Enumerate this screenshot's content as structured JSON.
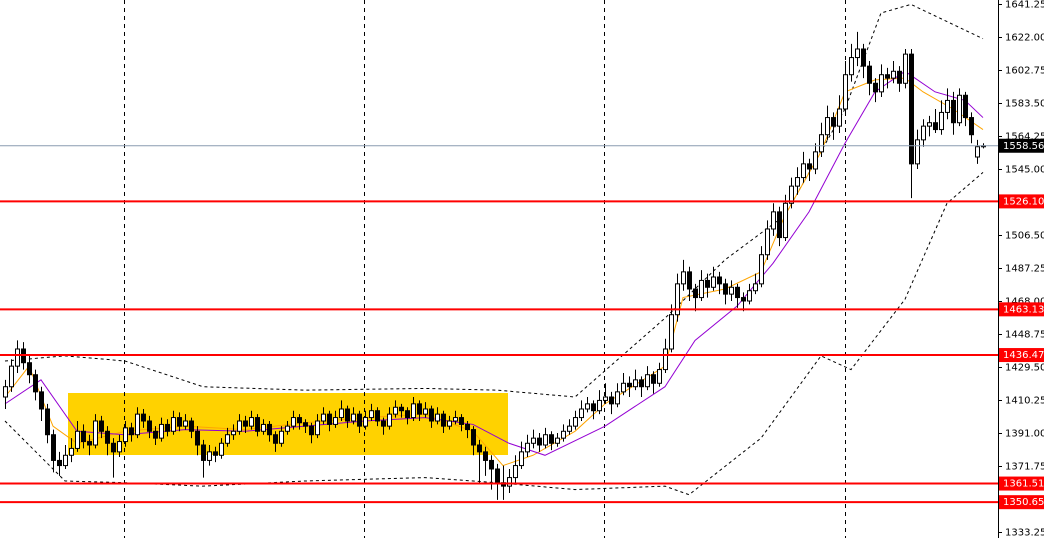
{
  "chart_data": {
    "type": "candlestick",
    "ylim": [
      1329.75,
      1643.58
    ],
    "yticks": [
      1641.25,
      {
        "value": 1622,
        "label": "1622.00"
      },
      1602.75,
      {
        "value": 1583.5,
        "label": "1583.50"
      },
      1564.25,
      {
        "value": 1545,
        "label": "1545.00"
      },
      {
        "value": 1506.5,
        "label": "1506.50"
      },
      1487.25,
      {
        "value": 1468,
        "label": "1468.00"
      },
      1448.75,
      {
        "value": 1429.5,
        "label": "1429.50"
      },
      1410.25,
      {
        "value": 1391,
        "label": "1391.00"
      },
      1371.75,
      1333.25
    ],
    "levels": [
      {
        "value": 1526.1,
        "label": "1526.10"
      },
      1463.13,
      1436.47,
      1361.51,
      1350.65
    ],
    "level_color": "#ff0000",
    "last_price": 1558.56,
    "up_color": "#ffffff",
    "down_color": "#000000",
    "candles": [
      [
        1412,
        1422,
        1405,
        1418
      ],
      [
        1418,
        1434,
        1415,
        1430
      ],
      [
        1430,
        1445,
        1426,
        1440
      ],
      [
        1440,
        1444,
        1428,
        1432
      ],
      [
        1432,
        1436,
        1420,
        1425
      ],
      [
        1425,
        1428,
        1410,
        1415
      ],
      [
        1415,
        1418,
        1398,
        1405
      ],
      [
        1405,
        1408,
        1385,
        1390
      ],
      [
        1390,
        1393,
        1368,
        1375
      ],
      [
        1375,
        1380,
        1366,
        1372
      ],
      [
        1372,
        1384,
        1370,
        1378
      ],
      [
        1378,
        1388,
        1374,
        1382
      ],
      [
        1382,
        1398,
        1380,
        1392
      ],
      [
        1392,
        1396,
        1382,
        1386
      ],
      [
        1386,
        1390,
        1378,
        1384
      ],
      [
        1384,
        1402,
        1382,
        1398
      ],
      [
        1398,
        1401,
        1388,
        1392
      ],
      [
        1392,
        1395,
        1378,
        1385
      ],
      [
        1385,
        1388,
        1365,
        1380
      ],
      [
        1380,
        1390,
        1377,
        1386
      ],
      [
        1386,
        1398,
        1383,
        1394
      ],
      [
        1394,
        1397,
        1386,
        1390
      ],
      [
        1390,
        1406,
        1388,
        1402
      ],
      [
        1402,
        1405,
        1394,
        1398
      ],
      [
        1398,
        1401,
        1388,
        1392
      ],
      [
        1392,
        1395,
        1384,
        1388
      ],
      [
        1388,
        1400,
        1386,
        1396
      ],
      [
        1396,
        1399,
        1389,
        1392
      ],
      [
        1392,
        1404,
        1390,
        1400
      ],
      [
        1400,
        1403,
        1392,
        1395
      ],
      [
        1395,
        1402,
        1393,
        1398
      ],
      [
        1398,
        1400,
        1388,
        1392
      ],
      [
        1392,
        1395,
        1378,
        1384
      ],
      [
        1384,
        1387,
        1365,
        1375
      ],
      [
        1375,
        1384,
        1372,
        1380
      ],
      [
        1380,
        1383,
        1374,
        1378
      ],
      [
        1378,
        1388,
        1376,
        1385
      ],
      [
        1385,
        1394,
        1383,
        1390
      ],
      [
        1390,
        1396,
        1387,
        1392
      ],
      [
        1392,
        1402,
        1390,
        1398
      ],
      [
        1398,
        1401,
        1391,
        1395
      ],
      [
        1395,
        1404,
        1393,
        1400
      ],
      [
        1400,
        1402,
        1389,
        1392
      ],
      [
        1392,
        1399,
        1390,
        1396
      ],
      [
        1396,
        1398,
        1386,
        1390
      ],
      [
        1390,
        1392,
        1380,
        1385
      ],
      [
        1385,
        1395,
        1383,
        1392
      ],
      [
        1392,
        1398,
        1390,
        1395
      ],
      [
        1395,
        1404,
        1393,
        1400
      ],
      [
        1400,
        1402,
        1393,
        1397
      ],
      [
        1397,
        1399,
        1391,
        1395
      ],
      [
        1395,
        1397,
        1385,
        1390
      ],
      [
        1390,
        1402,
        1388,
        1398
      ],
      [
        1398,
        1406,
        1396,
        1402
      ],
      [
        1402,
        1404,
        1392,
        1396
      ],
      [
        1396,
        1404,
        1394,
        1400
      ],
      [
        1400,
        1410,
        1398,
        1405
      ],
      [
        1405,
        1407,
        1394,
        1398
      ],
      [
        1398,
        1406,
        1396,
        1402
      ],
      [
        1402,
        1404,
        1391,
        1395
      ],
      [
        1395,
        1404,
        1393,
        1400
      ],
      [
        1400,
        1408,
        1398,
        1404
      ],
      [
        1404,
        1406,
        1395,
        1398
      ],
      [
        1398,
        1400,
        1390,
        1395
      ],
      [
        1395,
        1406,
        1393,
        1402
      ],
      [
        1402,
        1410,
        1400,
        1406
      ],
      [
        1406,
        1408,
        1400,
        1404
      ],
      [
        1404,
        1406,
        1396,
        1400
      ],
      [
        1400,
        1412,
        1398,
        1408
      ],
      [
        1408,
        1410,
        1398,
        1402
      ],
      [
        1402,
        1409,
        1400,
        1405
      ],
      [
        1405,
        1407,
        1394,
        1398
      ],
      [
        1398,
        1406,
        1396,
        1402
      ],
      [
        1402,
        1404,
        1391,
        1395
      ],
      [
        1395,
        1401,
        1393,
        1398
      ],
      [
        1398,
        1404,
        1396,
        1400
      ],
      [
        1400,
        1402,
        1392,
        1396
      ],
      [
        1396,
        1398,
        1388,
        1393
      ],
      [
        1393,
        1395,
        1378,
        1384
      ],
      [
        1384,
        1387,
        1362,
        1380
      ],
      [
        1380,
        1383,
        1366,
        1375
      ],
      [
        1375,
        1378,
        1358,
        1370
      ],
      [
        1370,
        1373,
        1352,
        1362
      ],
      [
        1362,
        1372,
        1352,
        1360
      ],
      [
        1360,
        1370,
        1356,
        1365
      ],
      [
        1365,
        1378,
        1362,
        1372
      ],
      [
        1372,
        1386,
        1370,
        1380
      ],
      [
        1380,
        1390,
        1377,
        1385
      ],
      [
        1385,
        1393,
        1382,
        1388
      ],
      [
        1388,
        1391,
        1380,
        1384
      ],
      [
        1384,
        1394,
        1382,
        1390
      ],
      [
        1390,
        1392,
        1381,
        1385
      ],
      [
        1385,
        1391,
        1383,
        1388
      ],
      [
        1388,
        1396,
        1386,
        1392
      ],
      [
        1392,
        1399,
        1390,
        1395
      ],
      [
        1395,
        1404,
        1393,
        1400
      ],
      [
        1400,
        1410,
        1398,
        1405
      ],
      [
        1405,
        1412,
        1403,
        1408
      ],
      [
        1408,
        1410,
        1399,
        1404
      ],
      [
        1404,
        1416,
        1402,
        1410
      ],
      [
        1410,
        1420,
        1408,
        1412
      ],
      [
        1412,
        1415,
        1402,
        1408
      ],
      [
        1408,
        1420,
        1406,
        1415
      ],
      [
        1415,
        1426,
        1413,
        1420
      ],
      [
        1420,
        1424,
        1412,
        1418
      ],
      [
        1418,
        1428,
        1416,
        1422
      ],
      [
        1422,
        1424,
        1412,
        1418
      ],
      [
        1418,
        1430,
        1416,
        1425
      ],
      [
        1425,
        1427,
        1414,
        1420
      ],
      [
        1420,
        1432,
        1418,
        1428
      ],
      [
        1428,
        1446,
        1426,
        1440
      ],
      [
        1440,
        1466,
        1438,
        1460
      ],
      [
        1460,
        1484,
        1456,
        1478
      ],
      [
        1478,
        1492,
        1474,
        1485
      ],
      [
        1485,
        1488,
        1468,
        1475
      ],
      [
        1475,
        1478,
        1462,
        1470
      ],
      [
        1470,
        1486,
        1468,
        1480
      ],
      [
        1480,
        1484,
        1470,
        1476
      ],
      [
        1476,
        1488,
        1474,
        1482
      ],
      [
        1482,
        1485,
        1472,
        1478
      ],
      [
        1478,
        1481,
        1466,
        1472
      ],
      [
        1472,
        1480,
        1468,
        1476
      ],
      [
        1476,
        1478,
        1464,
        1470
      ],
      [
        1470,
        1473,
        1462,
        1468
      ],
      [
        1468,
        1478,
        1466,
        1474
      ],
      [
        1474,
        1484,
        1472,
        1478
      ],
      [
        1478,
        1500,
        1476,
        1495
      ],
      [
        1495,
        1515,
        1492,
        1510
      ],
      [
        1510,
        1525,
        1506,
        1520
      ],
      [
        1520,
        1523,
        1500,
        1505
      ],
      [
        1505,
        1530,
        1503,
        1525
      ],
      [
        1525,
        1540,
        1522,
        1535
      ],
      [
        1535,
        1546,
        1530,
        1540
      ],
      [
        1540,
        1555,
        1537,
        1548
      ],
      [
        1548,
        1551,
        1538,
        1545
      ],
      [
        1545,
        1560,
        1542,
        1555
      ],
      [
        1555,
        1572,
        1552,
        1565
      ],
      [
        1565,
        1582,
        1562,
        1575
      ],
      [
        1575,
        1578,
        1562,
        1570
      ],
      [
        1570,
        1588,
        1566,
        1580
      ],
      [
        1580,
        1608,
        1578,
        1600
      ],
      [
        1600,
        1618,
        1596,
        1610
      ],
      [
        1610,
        1625,
        1605,
        1615
      ],
      [
        1615,
        1618,
        1598,
        1605
      ],
      [
        1605,
        1608,
        1588,
        1595
      ],
      [
        1595,
        1598,
        1584,
        1590
      ],
      [
        1590,
        1606,
        1587,
        1600
      ],
      [
        1600,
        1604,
        1592,
        1598
      ],
      [
        1598,
        1608,
        1595,
        1602
      ],
      [
        1602,
        1605,
        1590,
        1595
      ],
      [
        1595,
        1615,
        1592,
        1612
      ],
      [
        1612,
        1615,
        1528,
        1548
      ],
      [
        1548,
        1568,
        1545,
        1562
      ],
      [
        1562,
        1574,
        1558,
        1570
      ],
      [
        1570,
        1576,
        1564,
        1572
      ],
      [
        1572,
        1580,
        1566,
        1568
      ],
      [
        1568,
        1585,
        1565,
        1578
      ],
      [
        1578,
        1592,
        1574,
        1585
      ],
      [
        1585,
        1590,
        1565,
        1572
      ],
      [
        1572,
        1592,
        1570,
        1588
      ],
      [
        1588,
        1590,
        1570,
        1575
      ],
      [
        1575,
        1578,
        1560,
        1565
      ],
      [
        1552,
        1562,
        1548,
        1558
      ],
      [
        1558.56,
        1560,
        1557,
        1558.56
      ]
    ],
    "overlays": [
      {
        "color": "#000000",
        "dash": true,
        "x": [
          0,
          10,
          20,
          33,
          50,
          70,
          82,
          95,
          110,
          120,
          130,
          140,
          146,
          151,
          163
        ],
        "values": [
          1433,
          1436,
          1433,
          1418,
          1416,
          1417,
          1416,
          1412,
          1458,
          1492,
          1518,
          1580,
          1636,
          1641,
          1621
        ]
      },
      {
        "color": "#000000",
        "dash": true,
        "x": [
          0,
          10,
          20,
          33,
          50,
          70,
          82,
          95,
          110,
          114,
          126,
          136,
          141,
          150,
          157,
          163
        ],
        "values": [
          1398,
          1363,
          1362,
          1360,
          1363,
          1365,
          1362,
          1358,
          1360,
          1355,
          1388,
          1436,
          1428,
          1469,
          1525,
          1543
        ]
      },
      {
        "color": "#ffa500",
        "dash": false,
        "x": [
          0,
          4,
          8,
          12,
          20,
          30,
          40,
          50,
          60,
          70,
          78,
          83,
          88,
          95,
          100,
          110,
          113,
          120,
          126,
          130,
          136,
          140,
          145,
          150,
          153,
          158,
          163
        ],
        "values": [
          1412,
          1430,
          1395,
          1385,
          1392,
          1395,
          1393,
          1397,
          1400,
          1402,
          1392,
          1372,
          1378,
          1392,
          1408,
          1430,
          1470,
          1475,
          1485,
          1518,
          1555,
          1590,
          1597,
          1598,
          1590,
          1580,
          1568
        ]
      },
      {
        "color": "#9400d3",
        "dash": false,
        "x": [
          0,
          6,
          12,
          20,
          30,
          40,
          50,
          60,
          70,
          78,
          84,
          90,
          100,
          110,
          115,
          122,
          128,
          134,
          140,
          145,
          150,
          155,
          160,
          163
        ],
        "values": [
          1408,
          1422,
          1392,
          1390,
          1393,
          1392,
          1395,
          1398,
          1400,
          1396,
          1385,
          1378,
          1395,
          1418,
          1445,
          1465,
          1490,
          1520,
          1560,
          1590,
          1602,
          1590,
          1585,
          1575
        ]
      }
    ]
  }
}
